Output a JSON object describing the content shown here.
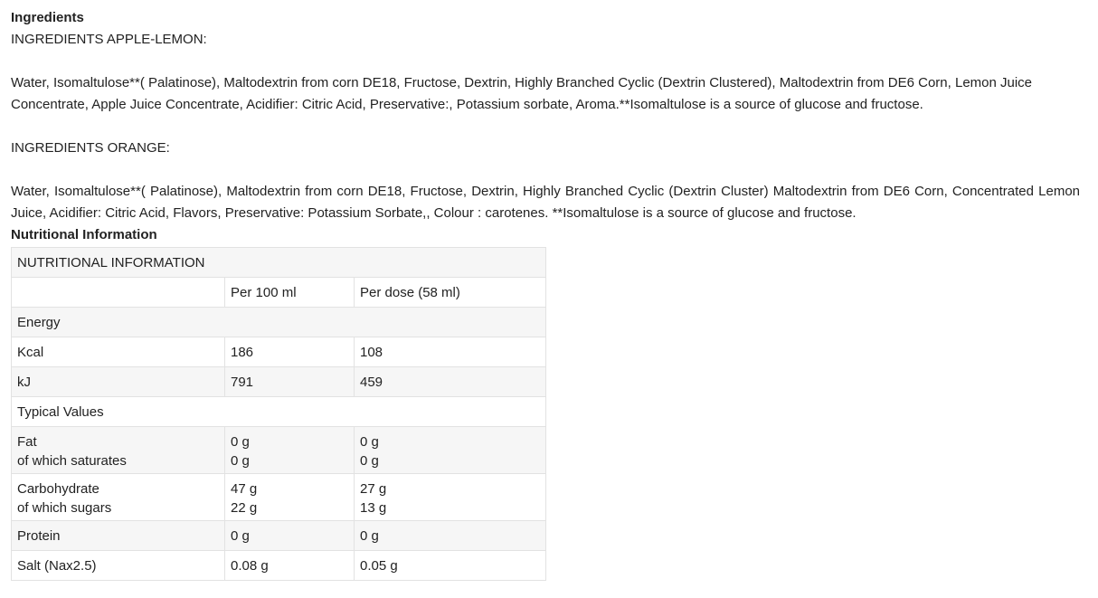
{
  "ingredients": {
    "heading": "Ingredients",
    "apple_lemon_title": "INGREDIENTS APPLE-LEMON:",
    "apple_lemon_text": "Water, Isomaltulose**( Palatinose), Maltodextrin from corn DE18, Fructose, Dextrin, Highly Branched Cyclic (Dextrin Clustered), Maltodextrin from DE6 Corn, Lemon Juice Concentrate, Apple Juice Concentrate, Acidifier: Citric Acid, Preservative:, Potassium sorbate, Aroma.**Isomaltulose is a source of glucose and fructose.",
    "orange_title": "INGREDIENTS ORANGE:",
    "orange_text": "Water, Isomaltulose**( Palatinose), Maltodextrin from corn DE18, Fructose, Dextrin, Highly Branched Cyclic (Dextrin Cluster) Maltodextrin from DE6 Corn, Concentrated Lemon Juice, Acidifier: Citric Acid, Flavors, Preservative: Potassium Sorbate,, Colour : carotenes. **Isomaltulose is a source of glucose and fructose."
  },
  "nutrition": {
    "heading": "Nutritional Information",
    "table_title": "NUTRITIONAL INFORMATION",
    "columns": [
      "",
      "Per 100 ml",
      "Per dose (58 ml)"
    ],
    "rows": [
      {
        "label": [
          "Energy"
        ],
        "per100": [],
        "perdose": []
      },
      {
        "label": [
          "Kcal"
        ],
        "per100": [
          "186"
        ],
        "perdose": [
          "108"
        ]
      },
      {
        "label": [
          "kJ"
        ],
        "per100": [
          "791"
        ],
        "perdose": [
          "459"
        ]
      },
      {
        "label": [
          "Typical Values"
        ],
        "per100": [],
        "perdose": []
      },
      {
        "label": [
          "Fat",
          "of which saturates"
        ],
        "per100": [
          "0 g",
          "0 g"
        ],
        "perdose": [
          "0 g",
          "0 g"
        ]
      },
      {
        "label": [
          "Carbohydrate",
          "of which sugars"
        ],
        "per100": [
          "47 g",
          "22 g"
        ],
        "perdose": [
          "27 g",
          "13 g"
        ]
      },
      {
        "label": [
          "Protein"
        ],
        "per100": [
          "0 g"
        ],
        "perdose": [
          "0 g"
        ]
      },
      {
        "label": [
          "Salt (Nax2.5)"
        ],
        "per100": [
          "0.08 g"
        ],
        "perdose": [
          "0.05 g"
        ]
      }
    ]
  }
}
